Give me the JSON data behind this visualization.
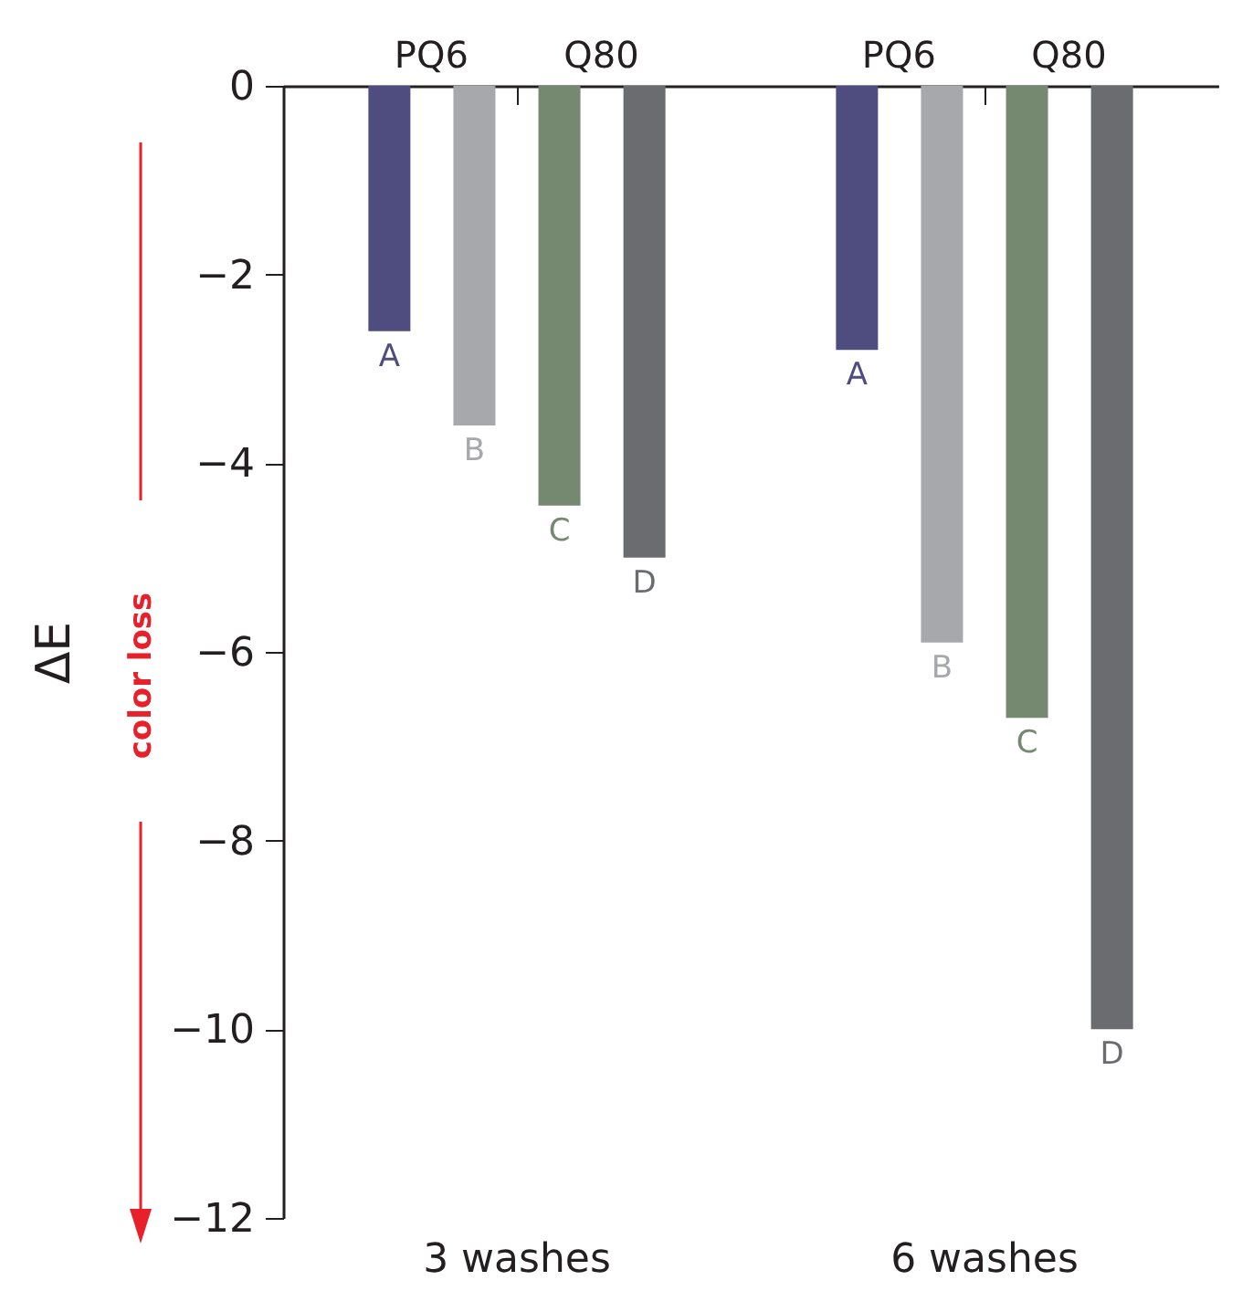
{
  "chart_data": {
    "type": "bar",
    "ylabel": "ΔE",
    "categories": [
      "3 washes",
      "6 washes"
    ],
    "series": [
      {
        "name": "A",
        "color": "#4f4c80",
        "values": [
          -2.6,
          -2.8
        ]
      },
      {
        "name": "B",
        "color": "#a7a8ab",
        "values": [
          -3.6,
          -5.9
        ]
      },
      {
        "name": "C",
        "color": "#758970",
        "values": [
          -4.45,
          -6.7
        ]
      },
      {
        "name": "D",
        "color": "#6b6c70",
        "values": [
          -5.0,
          -10.0
        ]
      }
    ],
    "ylim": [
      -12,
      0
    ],
    "yticks": [
      0,
      -2,
      -4,
      -6,
      -8,
      -10,
      -12
    ],
    "grid": false,
    "legend": false,
    "annotations": [
      "PQ6",
      "Q80",
      "PQ6",
      "Q80",
      "color loss"
    ]
  }
}
